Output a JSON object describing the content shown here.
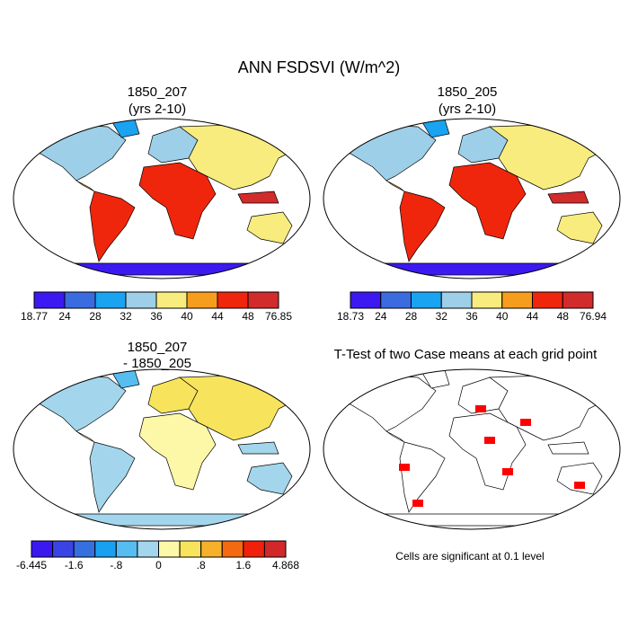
{
  "title": "ANN FSDSVI (W/m^2)",
  "panels": [
    {
      "title": "1850_207",
      "subtitle": "(yrs 2-10)"
    },
    {
      "title": "1850_205",
      "subtitle": "(yrs 2-10)"
    },
    {
      "title": "1850_207",
      "subtitle": "- 1850_205"
    },
    {
      "title": "T-Test of two Case means at each grid point"
    }
  ],
  "colorbars": [
    {
      "colors": [
        "#3c19f0",
        "#3a6ce0",
        "#1aa3f0",
        "#9dcfe8",
        "#f9ec7e",
        "#f79d1e",
        "#f0260c",
        "#d22b2b"
      ],
      "labels": [
        "18.77",
        "24",
        "28",
        "32",
        "36",
        "40",
        "44",
        "48",
        "76.85"
      ]
    },
    {
      "colors": [
        "#3c19f0",
        "#3a6ce0",
        "#1aa3f0",
        "#9dcfe8",
        "#f9ec7e",
        "#f79d1e",
        "#f0260c",
        "#d22b2b"
      ],
      "labels": [
        "18.73",
        "24",
        "28",
        "32",
        "36",
        "40",
        "44",
        "48",
        "76.94"
      ]
    },
    {
      "colors": [
        "#3919f0",
        "#3a44e6",
        "#3670e0",
        "#1aa0f0",
        "#55bdf0",
        "#a3d6ec",
        "#fcf8a8",
        "#f8e45c",
        "#f6b02a",
        "#f46a10",
        "#f0200a",
        "#d2282a"
      ],
      "labels": [
        "-6.445",
        "-1.6",
        "-.8",
        "0",
        ".8",
        "1.6",
        "4.868"
      ]
    }
  ],
  "note": "Cells are significant at 0.1 level"
}
